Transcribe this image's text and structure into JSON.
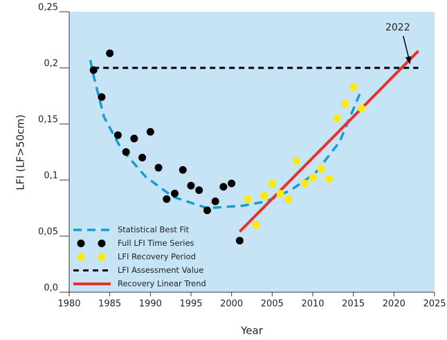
{
  "chart_data": {
    "type": "scatter",
    "xlabel": "Year",
    "ylabel": "LFI (LF>50cm)",
    "xlim": [
      1980,
      2025
    ],
    "xticks": [
      1980,
      1985,
      1990,
      1995,
      2000,
      2005,
      2010,
      2015,
      2020,
      2025
    ],
    "ylim": [
      0,
      0.25
    ],
    "yticks": [
      {
        "value": 0,
        "label": "0,0"
      },
      {
        "value": 0.05,
        "label": "0,05"
      },
      {
        "value": 0.1,
        "label": "0,1"
      },
      {
        "value": 0.15,
        "label": "0,15"
      },
      {
        "value": 0.2,
        "label": "0,2"
      },
      {
        "value": 0.25,
        "label": "0,25"
      }
    ],
    "background": "#c6e4f5",
    "series": [
      {
        "name": "Statistical Best Fit",
        "style": "dashed",
        "color": "#1a9ad6",
        "x": [
          1982.6,
          1983,
          1984.3,
          1986.4,
          1989.4,
          1992.8,
          1997,
          2001.3,
          2004.3,
          2007.3,
          2010.3,
          2013.3,
          2015.8
        ],
        "values": [
          0.207,
          0.193,
          0.156,
          0.128,
          0.103,
          0.085,
          0.075,
          0.077,
          0.081,
          0.091,
          0.106,
          0.134,
          0.177
        ]
      },
      {
        "name": "Full LFI Time Series",
        "style": "points",
        "color": "#000000",
        "x": [
          1983,
          1984,
          1985,
          1986,
          1987,
          1988,
          1989,
          1990,
          1991,
          1992,
          1993,
          1994,
          1995,
          1996,
          1997,
          1998,
          1999,
          2000,
          2001
        ],
        "values": [
          0.198,
          0.174,
          0.213,
          0.14,
          0.125,
          0.137,
          0.12,
          0.143,
          0.111,
          0.083,
          0.088,
          0.109,
          0.095,
          0.091,
          0.073,
          0.081,
          0.094,
          0.097,
          0.046
        ]
      },
      {
        "name": "LFI Recovery Period",
        "style": "points",
        "color": "#ffea00",
        "x": [
          2002,
          2003,
          2004,
          2005,
          2006,
          2007,
          2008,
          2009,
          2010,
          2011,
          2012,
          2013,
          2014,
          2015,
          2016
        ],
        "values": [
          0.083,
          0.06,
          0.086,
          0.097,
          0.088,
          0.083,
          0.117,
          0.097,
          0.102,
          0.11,
          0.101,
          0.155,
          0.168,
          0.183,
          0.164
        ]
      },
      {
        "name": "LFI Assessment Value",
        "style": "dashed-black",
        "color": "#000000",
        "x": [
          1983,
          2023
        ],
        "values": [
          0.2,
          0.2
        ]
      },
      {
        "name": "Recovery Linear Trend",
        "style": "line",
        "color": "#e53329",
        "x": [
          2001,
          2023
        ],
        "values": [
          0.054,
          0.215
        ]
      }
    ],
    "annotation": {
      "text": "2022",
      "x": 2022,
      "y": 0.2
    }
  }
}
